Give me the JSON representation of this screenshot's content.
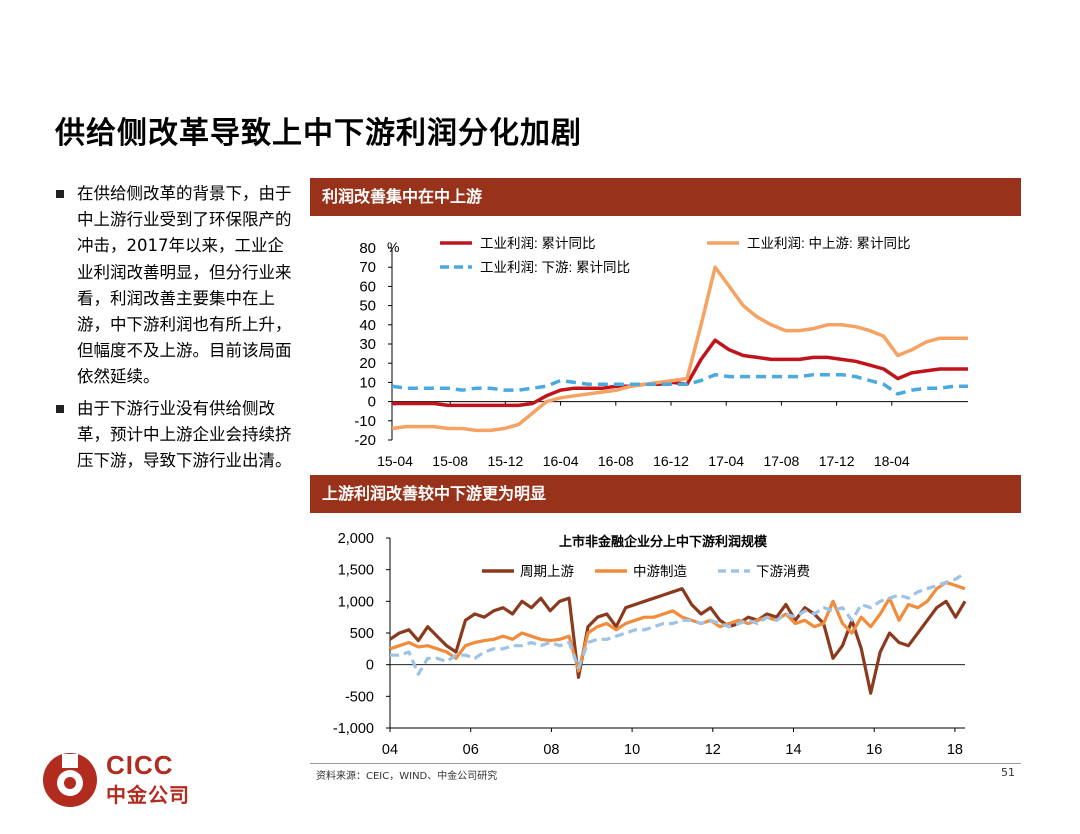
{
  "page": {
    "title": "供给侧改革导致上中下游利润分化加剧",
    "bullets": [
      "在供给侧改革的背景下，由于中上游行业受到了环保限产的冲击，2017年以来，工业企业利润改善明显，但分行业来看，利润改善主要集中在上游，中下游利润也有所上升，但幅度不及上游。目前该局面依然延续。",
      "由于下游行业没有供给侧改革，预计中上游企业会持续挤压下游，导致下游行业出清。"
    ],
    "section1_title": "利润改善集中在中上游",
    "section2_title": "上游利润改善较中下游更为明显",
    "source": "资料来源：CEIC，WIND、中金公司研究",
    "page_number": "51",
    "logo": {
      "en": "CICC",
      "cn": "中金公司"
    }
  },
  "colors": {
    "banner": "#98321a",
    "logo": "#b22b1f"
  },
  "chart_data": [
    {
      "type": "line",
      "title": "",
      "ylabel": "%",
      "ylim": [
        -20,
        80
      ],
      "yticks": [
        80,
        70,
        60,
        50,
        40,
        30,
        20,
        10,
        0,
        -10,
        -20
      ],
      "xticks": [
        "15-04",
        "15-08",
        "15-12",
        "16-04",
        "16-08",
        "16-12",
        "17-04",
        "17-08",
        "17-12",
        "18-04"
      ],
      "x_range": [
        "2015-03",
        "2018-08"
      ],
      "grid": false,
      "legend": "top",
      "series": [
        {
          "name": "工业利润: 累计同比",
          "color": "#c0141c",
          "dash": "solid",
          "values": [
            -1,
            -1,
            -1,
            -1,
            -2,
            -2,
            -2,
            -2,
            -2,
            -2,
            -1,
            3,
            6,
            7,
            7,
            7,
            8,
            8,
            9,
            9,
            10,
            9,
            22,
            32,
            27,
            24,
            23,
            22,
            22,
            22,
            23,
            23,
            22,
            21,
            19,
            17,
            12,
            15,
            16,
            17,
            17,
            17
          ]
        },
        {
          "name": "工业利润: 中上游: 累计同比",
          "color": "#f5a263",
          "dash": "solid",
          "values": [
            -14,
            -13,
            -13,
            -13,
            -14,
            -14,
            -15,
            -15,
            -14,
            -12,
            -6,
            0,
            2,
            3,
            4,
            5,
            6,
            8,
            9,
            10,
            11,
            12,
            40,
            70,
            60,
            50,
            44,
            40,
            37,
            37,
            38,
            40,
            40,
            39,
            37,
            34,
            24,
            27,
            31,
            33,
            33,
            33
          ]
        },
        {
          "name": "工业利润: 下游: 累计同比",
          "color": "#4aa9e0",
          "dash": "dashed",
          "values": [
            8,
            7,
            7,
            7,
            7,
            6,
            7,
            7,
            6,
            6,
            7,
            8,
            11,
            10,
            9,
            9,
            9,
            9,
            9,
            9,
            9,
            9,
            11,
            14,
            13,
            13,
            13,
            13,
            13,
            13,
            14,
            14,
            14,
            13,
            11,
            9,
            4,
            6,
            7,
            7,
            8,
            8
          ]
        }
      ]
    },
    {
      "type": "line",
      "title": "上市非金融企业分上中下游利润规模",
      "ylim": [
        -1000,
        2000
      ],
      "yticks": [
        "2,000",
        "1,500",
        "1,000",
        "500",
        "0",
        "-500",
        "-1,000"
      ],
      "xticks": [
        "04",
        "06",
        "08",
        "10",
        "12",
        "14",
        "16",
        "18"
      ],
      "x_range": [
        "2004Q1",
        "2018Q2"
      ],
      "grid": false,
      "legend": "top",
      "series": [
        {
          "name": "周期上游",
          "color": "#8b3a1e",
          "dash": "solid",
          "values": [
            400,
            500,
            550,
            380,
            600,
            450,
            300,
            200,
            700,
            800,
            750,
            850,
            900,
            800,
            1000,
            900,
            1050,
            850,
            1000,
            1050,
            -200,
            600,
            750,
            800,
            600,
            900,
            950,
            1000,
            1050,
            1100,
            1150,
            1200,
            950,
            800,
            900,
            700,
            600,
            650,
            750,
            700,
            800,
            750,
            950,
            700,
            900,
            800,
            650,
            100,
            300,
            700,
            250,
            -450,
            200,
            500,
            350,
            300,
            500,
            700,
            900,
            1000,
            750,
            1000
          ]
        },
        {
          "name": "中游制造",
          "color": "#f08c3c",
          "dash": "solid",
          "values": [
            250,
            300,
            350,
            280,
            300,
            250,
            200,
            100,
            300,
            350,
            380,
            400,
            450,
            400,
            500,
            450,
            400,
            380,
            400,
            450,
            -100,
            500,
            600,
            650,
            550,
            650,
            700,
            750,
            750,
            800,
            850,
            750,
            700,
            650,
            700,
            600,
            650,
            700,
            650,
            700,
            750,
            700,
            800,
            650,
            700,
            600,
            650,
            1000,
            650,
            500,
            750,
            600,
            800,
            1050,
            700,
            950,
            900,
            1000,
            1200,
            1300,
            1250,
            1200
          ]
        },
        {
          "name": "下游消费",
          "color": "#9dc3e6",
          "dash": "dashed",
          "values": [
            150,
            150,
            200,
            -150,
            100,
            100,
            50,
            150,
            150,
            100,
            200,
            250,
            250,
            300,
            300,
            350,
            300,
            350,
            300,
            350,
            -50,
            350,
            400,
            400,
            450,
            500,
            550,
            550,
            600,
            650,
            650,
            700,
            700,
            650,
            700,
            650,
            600,
            650,
            700,
            650,
            750,
            700,
            800,
            750,
            850,
            800,
            900,
            850,
            900,
            700,
            950,
            900,
            1000,
            1050,
            1100,
            1050,
            1150,
            1200,
            1250,
            1300,
            1350,
            1450
          ]
        }
      ]
    }
  ]
}
